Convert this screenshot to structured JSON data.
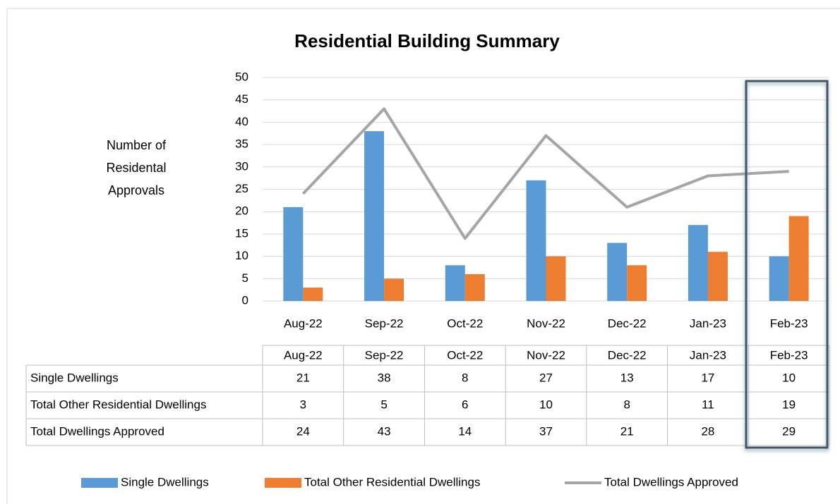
{
  "chart_data": {
    "type": "bar",
    "title": "Residential Building Summary",
    "y_label": "Number of Residental Approvals",
    "categories": [
      "Aug-22",
      "Sep-22",
      "Oct-22",
      "Nov-22",
      "Dec-22",
      "Jan-23",
      "Feb-23"
    ],
    "series": [
      {
        "name": "Single Dwellings",
        "color": "#5b9bd5",
        "values": [
          21,
          38,
          8,
          27,
          13,
          17,
          10
        ]
      },
      {
        "name": "Total Other Residential Dwellings",
        "color": "#ed7d31",
        "values": [
          3,
          5,
          6,
          10,
          8,
          11,
          19
        ]
      },
      {
        "name": "Total Dwellings Approved",
        "color": "#a5a5a5",
        "type": "line",
        "values": [
          24,
          43,
          14,
          37,
          21,
          28,
          29
        ]
      }
    ],
    "ylim": [
      0,
      50
    ],
    "yticks": [
      0,
      5,
      10,
      15,
      20,
      25,
      30,
      35,
      40,
      45,
      50
    ],
    "grid": true,
    "legend": "bottom",
    "data_table": true
  }
}
